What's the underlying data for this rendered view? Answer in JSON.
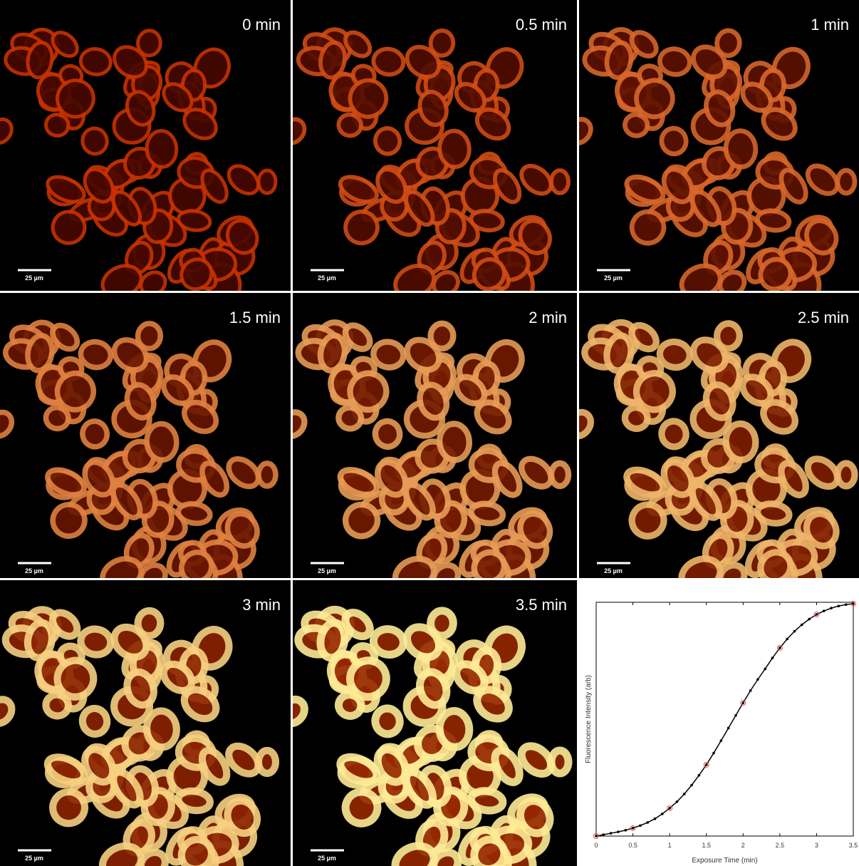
{
  "panels": [
    {
      "label": "0 min",
      "scale_bar": "25 µm"
    },
    {
      "label": "0.5 min",
      "scale_bar": "25 µm"
    },
    {
      "label": "1 min",
      "scale_bar": "25 µm"
    },
    {
      "label": "1.5 min",
      "scale_bar": "25 µm"
    },
    {
      "label": "2 min",
      "scale_bar": "25 µm"
    },
    {
      "label": "2.5 min",
      "scale_bar": "25 µm"
    },
    {
      "label": "3 min",
      "scale_bar": "25 µm"
    },
    {
      "label": "3.5 min",
      "scale_bar": "25 µm"
    }
  ],
  "chart_data": {
    "type": "line",
    "x_label": "Exposure Time (min)",
    "y_label": "Fluorescence Intensity (arb)",
    "xlim": [
      0,
      3.5
    ],
    "ylim": [
      0,
      100
    ],
    "xticks": [
      0,
      0.5,
      1,
      1.5,
      2,
      2.5,
      3,
      3.5
    ],
    "series": [
      {
        "color": "#000000",
        "marker": "dot",
        "x": [
          0,
          0.1,
          0.2,
          0.3,
          0.4,
          0.5,
          0.6,
          0.7,
          0.8,
          0.9,
          1.0,
          1.1,
          1.2,
          1.3,
          1.4,
          1.5,
          1.6,
          1.7,
          1.8,
          1.9,
          2.0,
          2.1,
          2.2,
          2.3,
          2.4,
          2.5,
          2.6,
          2.7,
          2.8,
          2.9,
          3.0,
          3.1,
          3.2,
          3.3,
          3.4,
          3.5
        ],
        "values": [
          0,
          0.6,
          1.2,
          1.8,
          2.5,
          3.4,
          4.5,
          5.8,
          7.4,
          9.5,
          11.9,
          14.7,
          18.0,
          21.8,
          26.0,
          30.5,
          35.5,
          40.8,
          46.2,
          51.6,
          57.0,
          62.2,
          67.0,
          71.5,
          76.2,
          80.5,
          84.3,
          87.6,
          90.4,
          92.8,
          94.8,
          96.3,
          97.5,
          98.4,
          99.0,
          99.4
        ]
      },
      {
        "color": "#e05050",
        "marker": "circle",
        "x": [
          0,
          0.5,
          1,
          1.5,
          2,
          2.5,
          3,
          3.5
        ],
        "values": [
          0,
          3.4,
          11.9,
          30.5,
          57.0,
          80.5,
          94.8,
          99.4
        ]
      }
    ]
  }
}
